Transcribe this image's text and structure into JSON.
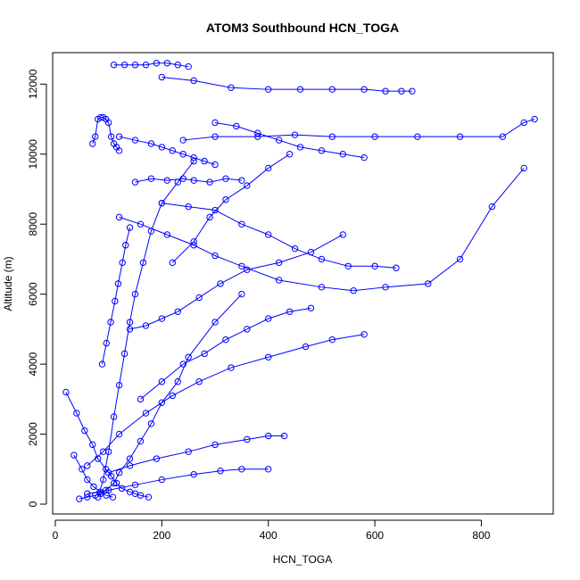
{
  "chart_data": {
    "type": "scatter",
    "title": "ATOM3 Southbound HCN_TOGA",
    "xlabel": "HCN_TOGA",
    "ylabel": "Altitude (m)",
    "xlim": [
      -5,
      935
    ],
    "ylim": [
      -280,
      12900
    ],
    "xticks": [
      0,
      200,
      400,
      600,
      800
    ],
    "yticks": [
      0,
      2000,
      4000,
      6000,
      8000,
      10000,
      12000
    ],
    "grid": false,
    "legend": "none",
    "marker": "open-circle",
    "connected": true,
    "color": "#0000ff",
    "series": [
      {
        "x": [
          45,
          60,
          75,
          85,
          95,
          110,
          120,
          140,
          160,
          180,
          200,
          230,
          250,
          300,
          350
        ],
        "y": [
          150,
          200,
          250,
          300,
          400,
          600,
          900,
          1300,
          1800,
          2300,
          2900,
          3500,
          4200,
          5200,
          6000
        ]
      },
      {
        "x": [
          20,
          40,
          55,
          70,
          80,
          95,
          105,
          115,
          125,
          140,
          150,
          160,
          175
        ],
        "y": [
          3200,
          2600,
          2100,
          1700,
          1300,
          1000,
          800,
          600,
          450,
          350,
          300,
          250,
          200
        ]
      },
      {
        "x": [
          80,
          90,
          100,
          110,
          120,
          130,
          140,
          150,
          165,
          180,
          200,
          230,
          260
        ],
        "y": [
          200,
          700,
          1500,
          2500,
          3400,
          4300,
          5200,
          6000,
          6900,
          7800,
          8600,
          9200,
          9800
        ]
      },
      {
        "x": [
          70,
          75,
          80,
          85,
          90,
          95,
          100,
          105,
          110,
          115,
          120
        ],
        "y": [
          10300,
          10500,
          11000,
          11050,
          11050,
          11000,
          10900,
          10500,
          10300,
          10200,
          10100
        ]
      },
      {
        "x": [
          240,
          300,
          380,
          450,
          520,
          600,
          680,
          760,
          840,
          880,
          900
        ],
        "y": [
          10400,
          10500,
          10500,
          10550,
          10500,
          10500,
          10500,
          10500,
          10500,
          10900,
          11000
        ]
      },
      {
        "x": [
          200,
          260,
          330,
          400,
          460,
          520,
          580,
          620,
          650,
          670
        ],
        "y": [
          12200,
          12100,
          11900,
          11850,
          11850,
          11850,
          11850,
          11800,
          11800,
          11800
        ]
      },
      {
        "x": [
          110,
          130,
          150,
          170,
          190,
          210,
          230,
          250
        ],
        "y": [
          12550,
          12550,
          12550,
          12550,
          12600,
          12600,
          12550,
          12500
        ]
      },
      {
        "x": [
          150,
          180,
          210,
          240,
          260,
          290,
          320,
          350
        ],
        "y": [
          9200,
          9300,
          9250,
          9300,
          9250,
          9200,
          9300,
          9250
        ]
      },
      {
        "x": [
          200,
          250,
          300,
          350,
          400,
          450,
          500,
          550,
          600,
          640
        ],
        "y": [
          8600,
          8500,
          8400,
          8000,
          7700,
          7300,
          7000,
          6800,
          6800,
          6750
        ]
      },
      {
        "x": [
          120,
          160,
          210,
          260,
          300,
          350,
          420,
          500,
          560,
          620,
          700,
          760,
          820,
          880
        ],
        "y": [
          8200,
          8000,
          7700,
          7400,
          7100,
          6800,
          6400,
          6200,
          6100,
          6200,
          6300,
          7000,
          8500,
          9600
        ]
      },
      {
        "x": [
          60,
          90,
          120,
          170,
          220,
          270,
          330,
          400,
          470,
          520,
          580
        ],
        "y": [
          1100,
          1500,
          2000,
          2600,
          3100,
          3500,
          3900,
          4200,
          4500,
          4700,
          4850
        ]
      },
      {
        "x": [
          100,
          140,
          190,
          250,
          300,
          360,
          400,
          430
        ],
        "y": [
          900,
          1100,
          1300,
          1500,
          1700,
          1850,
          1950,
          1950
        ]
      },
      {
        "x": [
          60,
          100,
          150,
          200,
          260,
          310,
          350,
          400
        ],
        "y": [
          300,
          400,
          550,
          700,
          850,
          950,
          1000,
          1000
        ]
      },
      {
        "x": [
          220,
          260,
          290,
          320,
          360,
          400,
          440
        ],
        "y": [
          6900,
          7500,
          8200,
          8700,
          9100,
          9600,
          10000
        ]
      },
      {
        "x": [
          120,
          150,
          180,
          200,
          220,
          240,
          260,
          280,
          300
        ],
        "y": [
          10500,
          10400,
          10300,
          10200,
          10100,
          10000,
          9900,
          9800,
          9700
        ]
      },
      {
        "x": [
          35,
          50,
          60,
          72,
          84,
          96,
          108
        ],
        "y": [
          1400,
          1000,
          700,
          500,
          350,
          250,
          200
        ]
      },
      {
        "x": [
          88,
          96,
          104,
          112,
          118,
          126,
          132,
          140
        ],
        "y": [
          4000,
          4600,
          5200,
          5800,
          6300,
          6900,
          7400,
          7900
        ]
      },
      {
        "x": [
          140,
          170,
          200,
          230,
          270,
          310,
          360,
          420,
          480,
          540
        ],
        "y": [
          5000,
          5100,
          5300,
          5500,
          5900,
          6300,
          6700,
          6900,
          7200,
          7700
        ]
      },
      {
        "x": [
          300,
          340,
          380,
          420,
          460,
          500,
          540,
          580
        ],
        "y": [
          10900,
          10800,
          10600,
          10400,
          10200,
          10100,
          10000,
          9900
        ]
      },
      {
        "x": [
          160,
          200,
          240,
          280,
          320,
          360,
          400,
          440,
          480
        ],
        "y": [
          3000,
          3500,
          4000,
          4300,
          4700,
          5000,
          5300,
          5500,
          5600
        ]
      }
    ]
  }
}
